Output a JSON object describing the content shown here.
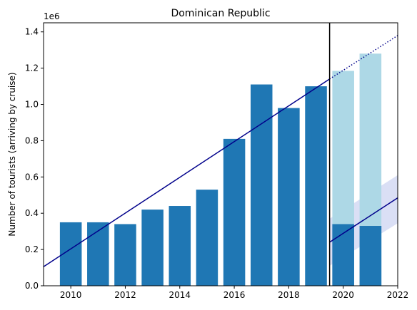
{
  "chart_data": {
    "type": "bar",
    "title": "Dominican Republic",
    "xlabel": "",
    "ylabel": "Number of tourists (arriving by cruise)",
    "y_offset_text": "1e6",
    "xlim": [
      2009,
      2022
    ],
    "ylim": [
      0,
      1450000
    ],
    "x_ticks": [
      2010,
      2012,
      2014,
      2016,
      2018,
      2020,
      2022
    ],
    "y_ticks": [
      0,
      200000,
      400000,
      600000,
      800000,
      1000000,
      1200000,
      1400000
    ],
    "y_tick_labels": [
      "0.0",
      "0.2",
      "0.4",
      "0.6",
      "0.8",
      "1.0",
      "1.2",
      "1.4"
    ],
    "grid": false,
    "bar_width": 0.8,
    "series": [
      {
        "kind": "actual",
        "color": "#1f77b4",
        "x": [
          2010,
          2011,
          2012,
          2013,
          2014,
          2015,
          2016,
          2017,
          2018,
          2019,
          2020,
          2021
        ],
        "values": [
          350000,
          350000,
          340000,
          420000,
          440000,
          530000,
          810000,
          1110000,
          980000,
          1100000,
          340000,
          330000
        ]
      },
      {
        "kind": "expected",
        "color": "#add8e6",
        "x": [
          2020,
          2021
        ],
        "values": [
          1185000,
          1280000
        ]
      }
    ],
    "trend": {
      "color": "#00008b",
      "points": [
        [
          2009,
          105000
        ],
        [
          2019.5,
          1140000
        ]
      ],
      "extension": [
        [
          2019.5,
          1140000
        ],
        [
          2022,
          1380000
        ]
      ]
    },
    "post_trend": {
      "color": "#00008b",
      "band_color": "#6a7fd8",
      "points": [
        [
          2019.5,
          240000
        ],
        [
          2022,
          485000
        ]
      ],
      "band": [
        {
          "x": 2019.5,
          "low": 110000,
          "high": 370000
        },
        {
          "x": 2022,
          "low": 345000,
          "high": 610000
        }
      ]
    },
    "cutoff": {
      "x": 2019.5,
      "color": "#000000"
    }
  }
}
